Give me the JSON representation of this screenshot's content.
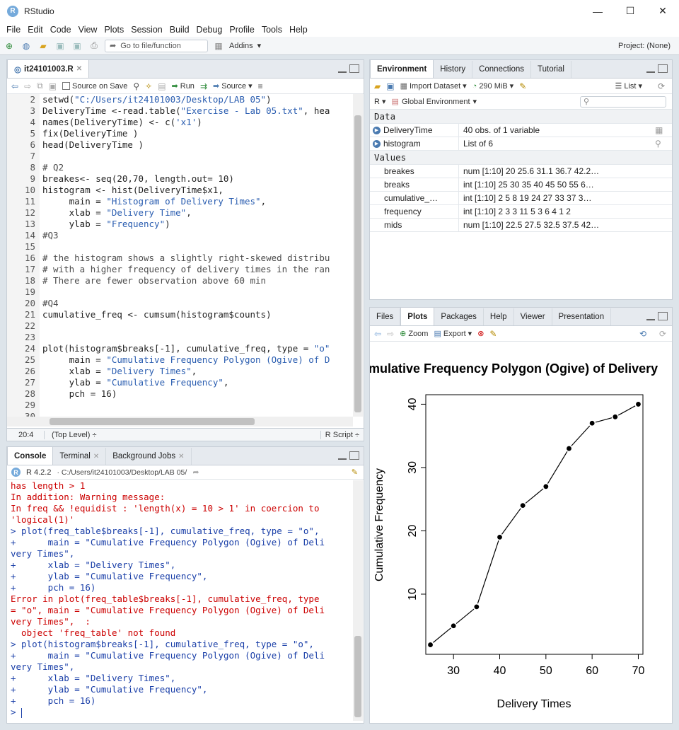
{
  "app": {
    "title": "RStudio",
    "logo_letter": "R",
    "minimize": "—",
    "maximize": "☐",
    "close": "✕"
  },
  "menu": [
    "File",
    "Edit",
    "Code",
    "View",
    "Plots",
    "Session",
    "Build",
    "Debug",
    "Profile",
    "Tools",
    "Help"
  ],
  "toolbar": {
    "goto_placeholder": "Go to file/function",
    "addins": "Addins",
    "project": "Project: (None)"
  },
  "editor": {
    "tab_label": "it24101003.R",
    "source_on_save": "Source on Save",
    "run": "Run",
    "source": "Source",
    "lines": [
      {
        "n": "2",
        "t": "setwd(\"C:/Users/it24101003/Desktop/LAB 05\")"
      },
      {
        "n": "3",
        "t": "DeliveryTime <-read.table(\"Exercise - Lab 05.txt\", hea"
      },
      {
        "n": "4",
        "t": "names(DeliveryTime) <- c('x1')"
      },
      {
        "n": "5",
        "t": "fix(DeliveryTime )"
      },
      {
        "n": "6",
        "t": "head(DeliveryTime )"
      },
      {
        "n": "7",
        "t": ""
      },
      {
        "n": "8",
        "t": "# Q2"
      },
      {
        "n": "9",
        "t": "breakes<- seq(20,70, length.out= 10)"
      },
      {
        "n": "10",
        "t": "histogram <- hist(DeliveryTime$x1,"
      },
      {
        "n": "11",
        "t": "     main = \"Histogram of Delivery Times\","
      },
      {
        "n": "12",
        "t": "     xlab = \"Delivery Time\","
      },
      {
        "n": "13",
        "t": "     ylab = \"Frequency\")"
      },
      {
        "n": "14",
        "t": "#Q3"
      },
      {
        "n": "15",
        "t": ""
      },
      {
        "n": "16",
        "t": "# the histogram shows a slightly right-skewed distribu"
      },
      {
        "n": "17",
        "t": "# with a higher frequency of delivery times in the ran"
      },
      {
        "n": "18",
        "t": "# There are fewer observation above 60 min"
      },
      {
        "n": "19",
        "t": ""
      },
      {
        "n": "20",
        "t": "#Q4"
      },
      {
        "n": "21",
        "t": "cumulative_freq <- cumsum(histogram$counts)"
      },
      {
        "n": "22",
        "t": ""
      },
      {
        "n": "23",
        "t": ""
      },
      {
        "n": "24",
        "t": "plot(histogram$breaks[-1], cumulative_freq, type = \"o\""
      },
      {
        "n": "25",
        "t": "     main = \"Cumulative Frequency Polygon (Ogive) of D"
      },
      {
        "n": "26",
        "t": "     xlab = \"Delivery Times\","
      },
      {
        "n": "27",
        "t": "     ylab = \"Cumulative Frequency\","
      },
      {
        "n": "28",
        "t": "     pch = 16)"
      },
      {
        "n": "29",
        "t": ""
      },
      {
        "n": "30",
        "t": ""
      }
    ],
    "status_pos": "20:4",
    "status_scope": "(Top Level) ÷",
    "status_type": "R Script ÷"
  },
  "console": {
    "tabs": [
      "Console",
      "Terminal",
      "Background Jobs"
    ],
    "rversion": "R 4.2.2",
    "path": "· C:/Users/it24101003/Desktop/LAB 05/",
    "lines": [
      {
        "c": "err",
        "t": "has length > 1"
      },
      {
        "c": "err",
        "t": "In addition: Warning message:"
      },
      {
        "c": "err",
        "t": "In freq && !equidist : 'length(x) = 10 > 1' in coercion to"
      },
      {
        "c": "err",
        "t": "'logical(1)'"
      },
      {
        "c": "cmd",
        "t": "> plot(freq_table$breaks[-1], cumulative_freq, type = \"o\","
      },
      {
        "c": "cmd",
        "t": "+      main = \"Cumulative Frequency Polygon (Ogive) of Deli"
      },
      {
        "c": "cmd",
        "t": "very Times\","
      },
      {
        "c": "cmd",
        "t": "+      xlab = \"Delivery Times\","
      },
      {
        "c": "cmd",
        "t": "+      ylab = \"Cumulative Frequency\","
      },
      {
        "c": "cmd",
        "t": "+      pch = 16)"
      },
      {
        "c": "err",
        "t": "Error in plot(freq_table$breaks[-1], cumulative_freq, type"
      },
      {
        "c": "err",
        "t": "= \"o\", main = \"Cumulative Frequency Polygon (Ogive) of Deli"
      },
      {
        "c": "err",
        "t": "very Times\",  :"
      },
      {
        "c": "err",
        "t": "  object 'freq_table' not found"
      },
      {
        "c": "cmd",
        "t": "> plot(histogram$breaks[-1], cumulative_freq, type = \"o\","
      },
      {
        "c": "cmd",
        "t": "+      main = \"Cumulative Frequency Polygon (Ogive) of Deli"
      },
      {
        "c": "cmd",
        "t": "very Times\","
      },
      {
        "c": "cmd",
        "t": "+      xlab = \"Delivery Times\","
      },
      {
        "c": "cmd",
        "t": "+      ylab = \"Cumulative Frequency\","
      },
      {
        "c": "cmd",
        "t": "+      pch = 16)"
      },
      {
        "c": "cmd",
        "t": "> "
      }
    ]
  },
  "environment": {
    "tabs": [
      "Environment",
      "History",
      "Connections",
      "Tutorial"
    ],
    "import": "Import Dataset",
    "memory": "290 MiB",
    "list": "List",
    "lang": "R",
    "scope": "Global Environment",
    "data_header": "Data",
    "values_header": "Values",
    "data": [
      {
        "name": "DeliveryTime",
        "value": "40 obs. of 1 variable"
      },
      {
        "name": "histogram",
        "value": "List of  6"
      }
    ],
    "values": [
      {
        "name": "breakes",
        "value": "num [1:10] 20 25.6 31.1 36.7 42.2…"
      },
      {
        "name": "breaks",
        "value": "int [1:10] 25 30 35 40 45 50 55 6…"
      },
      {
        "name": "cumulative_…",
        "value": "int [1:10] 2 5 8 19 24 27 33 37 3…"
      },
      {
        "name": "frequency",
        "value": "int [1:10] 2 3 3 11 5 3 6 4 1 2"
      },
      {
        "name": "mids",
        "value": "num [1:10] 22.5 27.5 32.5 37.5 42…"
      }
    ]
  },
  "plots": {
    "tabs": [
      "Files",
      "Plots",
      "Packages",
      "Help",
      "Viewer",
      "Presentation"
    ],
    "zoom": "Zoom",
    "export": "Export"
  },
  "chart_data": {
    "type": "line",
    "title": "mulative Frequency Polygon (Ogive) of Delivery",
    "xlabel": "Delivery Times",
    "ylabel": "Cumulative Frequency",
    "x": [
      25,
      30,
      35,
      40,
      45,
      50,
      55,
      60,
      65,
      70
    ],
    "y": [
      2,
      5,
      8,
      19,
      24,
      27,
      33,
      37,
      38,
      40
    ],
    "xticks": [
      30,
      40,
      50,
      60,
      70
    ],
    "yticks": [
      10,
      20,
      30,
      40
    ],
    "xlim": [
      24,
      71
    ],
    "ylim": [
      0.5,
      41.5
    ],
    "markers": "filled-circle",
    "grid": false
  }
}
